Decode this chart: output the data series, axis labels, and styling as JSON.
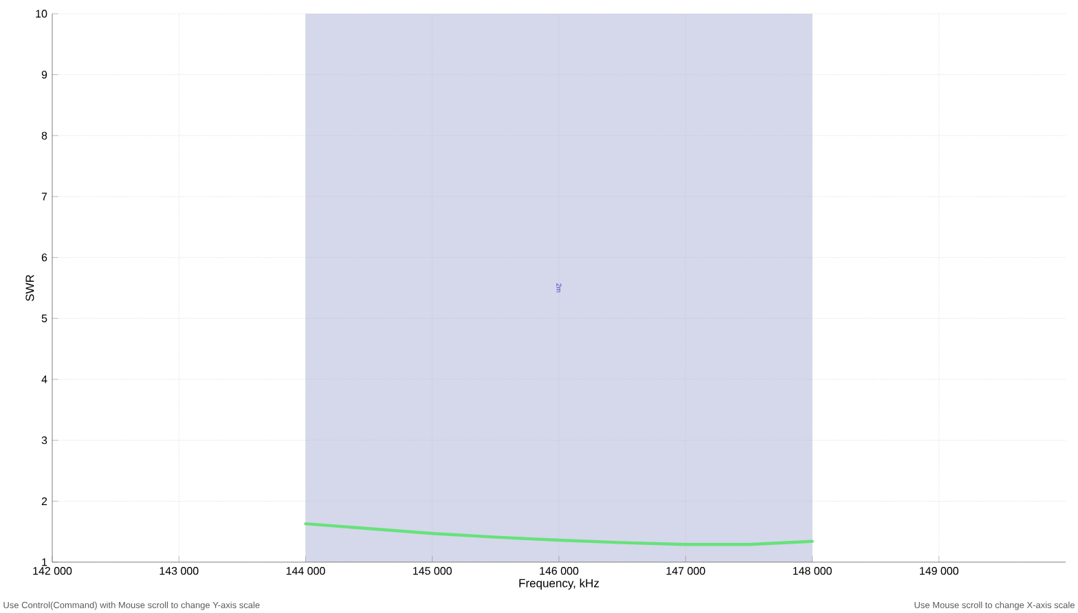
{
  "chart_data": {
    "type": "line",
    "xlabel": "Frequency, kHz",
    "ylabel": "SWR",
    "x": [
      144000,
      144500,
      145000,
      145500,
      146000,
      146500,
      147000,
      147500,
      148000
    ],
    "series": [
      {
        "color": "#66e27a",
        "values": [
          1.63,
          1.55,
          1.47,
          1.41,
          1.36,
          1.32,
          1.29,
          1.29,
          1.34
        ]
      }
    ],
    "xlim": [
      142000,
      150000
    ],
    "xticks": [
      {
        "value": 142000,
        "label": "142 000"
      },
      {
        "value": 143000,
        "label": "143 000"
      },
      {
        "value": 144000,
        "label": "144 000"
      },
      {
        "value": 145000,
        "label": "145 000"
      },
      {
        "value": 146000,
        "label": "146 000"
      },
      {
        "value": 147000,
        "label": "147 000"
      },
      {
        "value": 148000,
        "label": "148 000"
      },
      {
        "value": 149000,
        "label": "149 000"
      }
    ],
    "ylim": [
      1,
      10
    ],
    "yticks": [
      1,
      2,
      3,
      4,
      5,
      6,
      7,
      8,
      9,
      10
    ],
    "bands": [
      {
        "axis": "x",
        "from": 144000,
        "to": 148000,
        "label": "2m",
        "color": "#d5d7ea"
      }
    ],
    "grid": true,
    "line_style": "solid",
    "marker": "none",
    "annotations": [
      "Use Control(Command) with Mouse scroll to change Y-axis scale",
      "Use Mouse scroll to change X-axis scale"
    ]
  }
}
